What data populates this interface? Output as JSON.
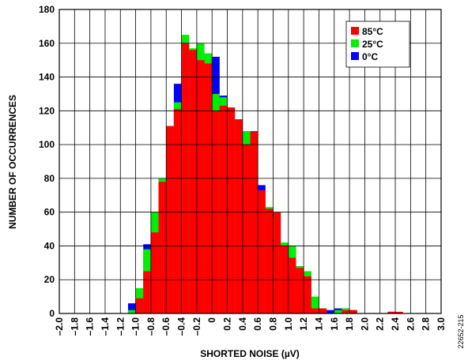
{
  "chart_data": {
    "type": "histogram",
    "xlabel": "SHORTED NOISE (µV)",
    "ylabel": "NUMBER OF OCCURRENCES",
    "side_note": "22652-215",
    "bins": [
      -1.1,
      -1.0,
      -0.9,
      -0.8,
      -0.7,
      -0.6,
      -0.5,
      -0.4,
      -0.3,
      -0.2,
      -0.1,
      0.0,
      0.1,
      0.2,
      0.3,
      0.4,
      0.5,
      0.6,
      0.7,
      0.8,
      0.9,
      1.0,
      1.1,
      1.2,
      1.3,
      1.4,
      1.5,
      1.6,
      1.7,
      1.8,
      1.9,
      2.0,
      2.1,
      2.2,
      2.3,
      2.4,
      2.5
    ],
    "series": [
      {
        "name": "85°C",
        "color": "#ff0000",
        "values": [
          0,
          9,
          25,
          48,
          78,
          111,
          121,
          160,
          156,
          150,
          148,
          120,
          123,
          122,
          115,
          100,
          108,
          73,
          62,
          60,
          40,
          33,
          27,
          22,
          3,
          3,
          0,
          0,
          2,
          2,
          0,
          0,
          0,
          0,
          1,
          1
        ]
      },
      {
        "name": "25°C",
        "color": "#00ee00",
        "values": [
          2,
          15,
          38,
          60,
          80,
          110,
          125,
          165,
          157,
          160,
          154,
          130,
          128,
          115,
          108,
          108,
          108,
          70,
          63,
          60,
          42,
          40,
          28,
          25,
          10,
          3,
          0,
          2,
          3,
          2,
          0,
          0,
          0,
          0,
          0,
          0
        ]
      },
      {
        "name": "0°C",
        "color": "#0000ff",
        "values": [
          6,
          13,
          41,
          55,
          80,
          110,
          136,
          162,
          155,
          160,
          152,
          152,
          129,
          115,
          110,
          105,
          108,
          76,
          62,
          60,
          41,
          38,
          28,
          25,
          5,
          3,
          2,
          3,
          3,
          2,
          0,
          0,
          0,
          0,
          1,
          0
        ]
      }
    ],
    "xlim": [
      -2.0,
      3.0
    ],
    "xticks": [
      {
        "value": -2.0,
        "label": "–2.0"
      },
      {
        "value": -1.8,
        "label": "–1.8"
      },
      {
        "value": -1.6,
        "label": "–1.6"
      },
      {
        "value": -1.4,
        "label": "–1.4"
      },
      {
        "value": -1.2,
        "label": "–1.2"
      },
      {
        "value": -1.0,
        "label": "–1.0"
      },
      {
        "value": -0.8,
        "label": "–0.8"
      },
      {
        "value": -0.6,
        "label": "–0.6"
      },
      {
        "value": -0.4,
        "label": "–0.4"
      },
      {
        "value": -0.2,
        "label": "–0.2"
      },
      0,
      {
        "value": 0.2,
        "label": "0.2"
      },
      {
        "value": 0.4,
        "label": "0.4"
      },
      {
        "value": 0.6,
        "label": "0.6"
      },
      {
        "value": 0.8,
        "label": "0.8"
      },
      {
        "value": 1.0,
        "label": "1.0"
      },
      {
        "value": 1.2,
        "label": "1.2"
      },
      {
        "value": 1.4,
        "label": "1.4"
      },
      {
        "value": 1.6,
        "label": "1.6"
      },
      {
        "value": 1.8,
        "label": "1.8"
      },
      {
        "value": 2.0,
        "label": "2.0"
      },
      {
        "value": 2.2,
        "label": "2.2"
      },
      {
        "value": 2.4,
        "label": "2.4"
      },
      {
        "value": 2.6,
        "label": "2.6"
      },
      {
        "value": 2.8,
        "label": "2.8"
      },
      {
        "value": 3.0,
        "label": "3.0"
      }
    ],
    "ylim": [
      0,
      180
    ],
    "yticks": [
      0,
      20,
      40,
      60,
      80,
      100,
      120,
      140,
      160,
      180
    ],
    "grid": true,
    "legend": "upper right"
  }
}
